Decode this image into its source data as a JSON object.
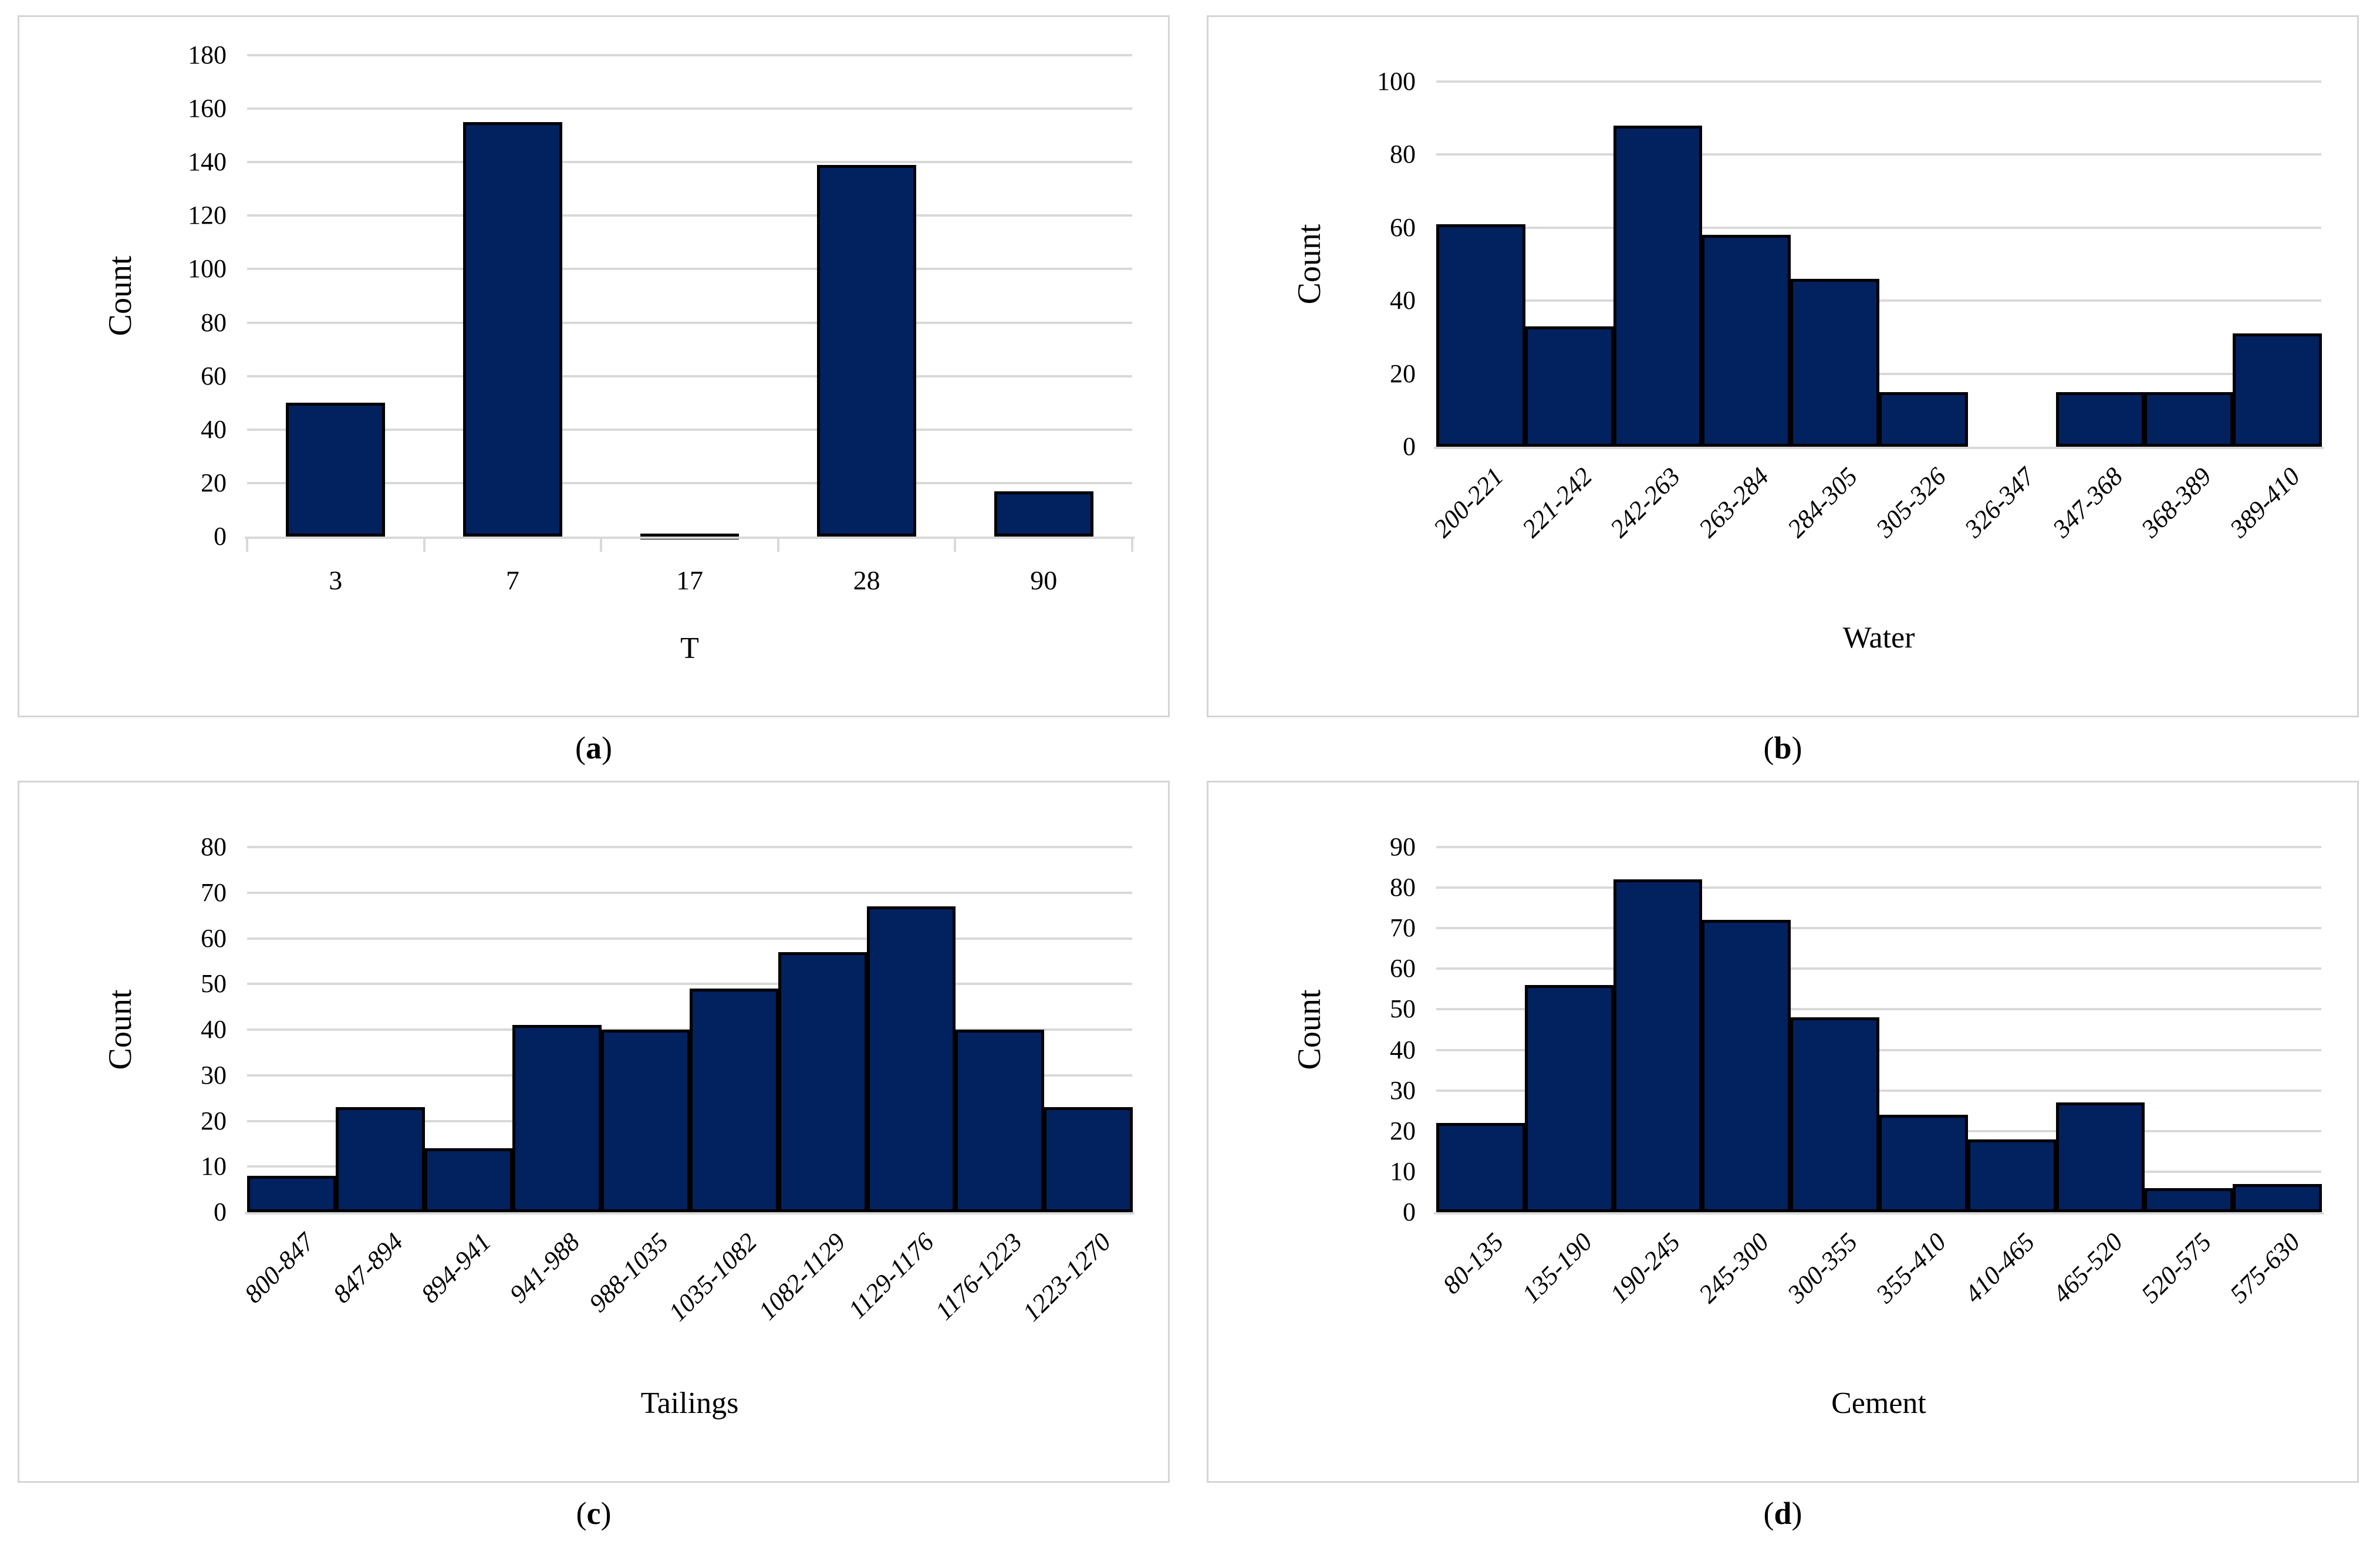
{
  "colors": {
    "bar_fill": "#02215f",
    "bar_border": "#000000",
    "gridline": "#d9d9d9",
    "axis_line": "#d9d9d9",
    "panel_border": "#d5d5d5",
    "text": "#000000",
    "background": "#ffffff"
  },
  "captions": [
    {
      "open": "(",
      "letter": "a",
      "close": ")"
    },
    {
      "open": "(",
      "letter": "b",
      "close": ")"
    },
    {
      "open": "(",
      "letter": "c",
      "close": ")"
    },
    {
      "open": "(",
      "letter": "d",
      "close": ")"
    }
  ],
  "chart_data": [
    {
      "id": "a",
      "type": "bar",
      "xlabel": "T",
      "ylabel": "Count",
      "categories": [
        "3",
        "7",
        "17",
        "28",
        "90"
      ],
      "values": [
        50,
        155,
        1,
        139,
        17
      ],
      "ylim": [
        0,
        180
      ],
      "yticks": [
        0,
        20,
        40,
        60,
        80,
        100,
        120,
        140,
        160,
        180
      ],
      "grid": true,
      "legend": false,
      "rotated_xlabels": false,
      "bar_gap": true
    },
    {
      "id": "b",
      "type": "bar",
      "xlabel": "Water",
      "ylabel": "Count",
      "categories": [
        "200-221",
        "221-242",
        "242-263",
        "263-284",
        "284-305",
        "305-326",
        "326-347",
        "347-368",
        "368-389",
        "389-410"
      ],
      "values": [
        61,
        33,
        88,
        58,
        46,
        15,
        0,
        15,
        15,
        31
      ],
      "ylim": [
        0,
        100
      ],
      "yticks": [
        0,
        20,
        40,
        60,
        80,
        100
      ],
      "grid": true,
      "legend": false,
      "rotated_xlabels": true,
      "bar_gap": false
    },
    {
      "id": "c",
      "type": "bar",
      "xlabel": "Tailings",
      "ylabel": "Count",
      "categories": [
        "800-847",
        "847-894",
        "894-941",
        "941-988",
        "988-1035",
        "1035-1082",
        "1082-1129",
        "1129-1176",
        "1176-1223",
        "1223-1270"
      ],
      "values": [
        8,
        23,
        14,
        41,
        40,
        49,
        57,
        67,
        40,
        23
      ],
      "ylim": [
        0,
        80
      ],
      "yticks": [
        0,
        10,
        20,
        30,
        40,
        50,
        60,
        70,
        80
      ],
      "grid": true,
      "legend": false,
      "rotated_xlabels": true,
      "bar_gap": false
    },
    {
      "id": "d",
      "type": "bar",
      "xlabel": "Cement",
      "ylabel": "Count",
      "categories": [
        "80-135",
        "135-190",
        "190-245",
        "245-300",
        "300-355",
        "355-410",
        "410-465",
        "465-520",
        "520-575",
        "575-630"
      ],
      "values": [
        22,
        56,
        82,
        72,
        48,
        24,
        18,
        27,
        6,
        7
      ],
      "ylim": [
        0,
        90
      ],
      "yticks": [
        0,
        10,
        20,
        30,
        40,
        50,
        60,
        70,
        80,
        90
      ],
      "grid": true,
      "legend": false,
      "rotated_xlabels": true,
      "bar_gap": false
    }
  ]
}
